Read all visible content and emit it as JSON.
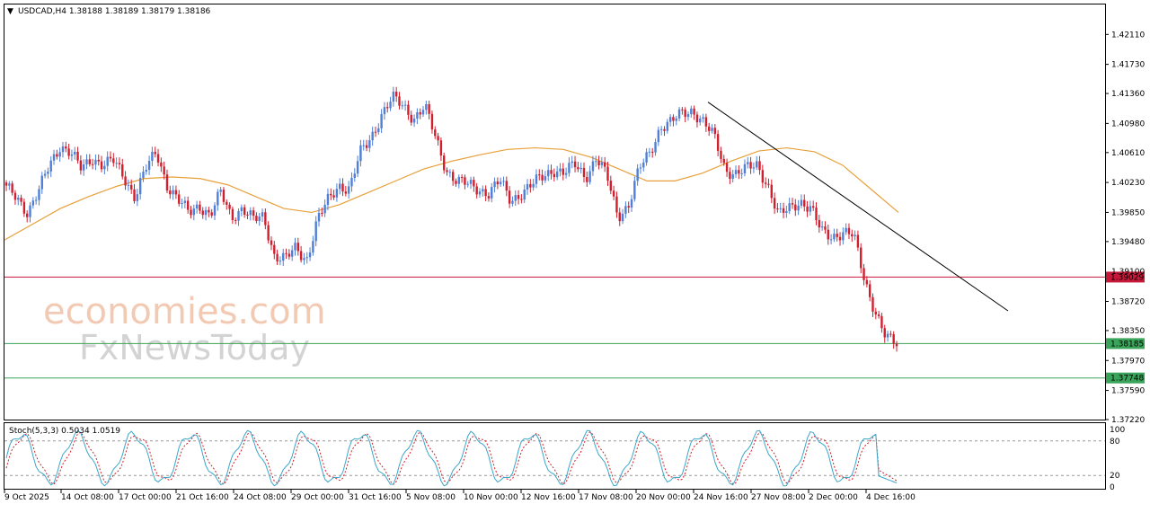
{
  "header": {
    "symbol_line": "USDCAD,H4  1.38188 1.38189 1.38179 1.38186"
  },
  "watermark": {
    "line1": "economies.com",
    "line2": "FxNewsToday"
  },
  "stoch": {
    "label": "Stoch(5,3,3) 0.5034 1.0519",
    "ticks": [
      "100",
      "80",
      "20",
      "0"
    ]
  },
  "price_axis": {
    "ticks": [
      "1.42110",
      "1.41730",
      "1.41360",
      "1.40980",
      "1.40610",
      "1.40230",
      "1.39850",
      "1.39480",
      "1.38720",
      "1.38350",
      "1.37970",
      "1.37590",
      "1.37220"
    ],
    "hidden_tick": "1.39100"
  },
  "levels": [
    {
      "label": "1.39029",
      "value": 1.39029,
      "color": "#c8183a"
    },
    {
      "label": "1.38185",
      "value": 1.38185,
      "color": "#3aa55a"
    },
    {
      "label": "1.37748",
      "value": 1.37748,
      "color": "#3aa55a"
    }
  ],
  "time_axis": {
    "labels": [
      "9 Oct 2025",
      "14 Oct 08:00",
      "17 Oct 00:00",
      "21 Oct 16:00",
      "24 Oct 08:00",
      "29 Oct 00:00",
      "31 Oct 16:00",
      "5 Nov 08:00",
      "10 Nov 00:00",
      "12 Nov 16:00",
      "17 Nov 08:00",
      "20 Nov 00:00",
      "24 Nov 16:00",
      "27 Nov 08:00",
      "2 Dec 00:00",
      "4 Dec 16:00"
    ]
  },
  "colors": {
    "bull": "#4f7fd6",
    "bear": "#d11f2e",
    "ma": "#e8a03a",
    "trendline": "#000000",
    "stoch_main": "#3ba7c9",
    "stoch_signal": "#d11f2e",
    "grid": "#000000"
  },
  "chart_data": {
    "type": "candlestick",
    "symbol": "USDCAD",
    "timeframe": "H4",
    "ylim": [
      1.3722,
      1.4249
    ],
    "x_labels": [
      "9 Oct 2025",
      "14 Oct 08:00",
      "17 Oct 00:00",
      "21 Oct 16:00",
      "24 Oct 08:00",
      "29 Oct 00:00",
      "31 Oct 16:00",
      "5 Nov 08:00",
      "10 Nov 00:00",
      "12 Nov 16:00",
      "17 Nov 08:00",
      "20 Nov 00:00",
      "24 Nov 16:00",
      "27 Nov 08:00",
      "2 Dec 00:00",
      "4 Dec 16:00"
    ],
    "close_path": [
      1.4015,
      1.4005,
      1.3985,
      1.401,
      1.4045,
      1.407,
      1.406,
      1.404,
      1.4055,
      1.4045,
      1.405,
      1.403,
      1.4005,
      1.404,
      1.4062,
      1.402,
      1.4,
      1.3985,
      1.3995,
      1.398,
      1.401,
      1.398,
      1.399,
      1.3975,
      1.398,
      1.393,
      1.3925,
      1.394,
      1.3925,
      1.3975,
      1.4,
      1.402,
      1.4015,
      1.406,
      1.408,
      1.411,
      1.413,
      1.412,
      1.4105,
      1.412,
      1.408,
      1.404,
      1.4025,
      1.402,
      1.4015,
      1.401,
      1.4025,
      1.4,
      1.401,
      1.402,
      1.403,
      1.404,
      1.4035,
      1.4045,
      1.403,
      1.4055,
      1.403,
      1.398,
      1.3995,
      1.404,
      1.406,
      1.4095,
      1.41,
      1.411,
      1.4115,
      1.41,
      1.408,
      1.404,
      1.4035,
      1.404,
      1.4045,
      1.402,
      1.398,
      1.399,
      1.4,
      1.399,
      1.396,
      1.3955,
      1.396,
      1.3955,
      1.39,
      1.386,
      1.3825,
      1.3818
    ],
    "moving_average": [
      1.395,
      1.397,
      1.399,
      1.4005,
      1.4018,
      1.4028,
      1.403,
      1.4028,
      1.402,
      1.4005,
      1.399,
      1.3985,
      1.3995,
      1.401,
      1.4025,
      1.404,
      1.405,
      1.4058,
      1.4065,
      1.4067,
      1.4065,
      1.4055,
      1.404,
      1.4025,
      1.4025,
      1.4035,
      1.405,
      1.4063,
      1.4067,
      1.4062,
      1.4045,
      1.4015,
      1.3985
    ],
    "trendline": {
      "from": {
        "x": "24 Nov 16:00",
        "y": 1.4125
      },
      "to": {
        "x": "4 Dec 16:00+",
        "y": 1.386
      }
    },
    "horizontal_levels": [
      1.39029,
      1.38185,
      1.37748
    ],
    "stochastic": {
      "params": "5,3,3",
      "main": 0.5034,
      "signal": 1.0519,
      "levels": [
        20,
        80
      ]
    }
  }
}
